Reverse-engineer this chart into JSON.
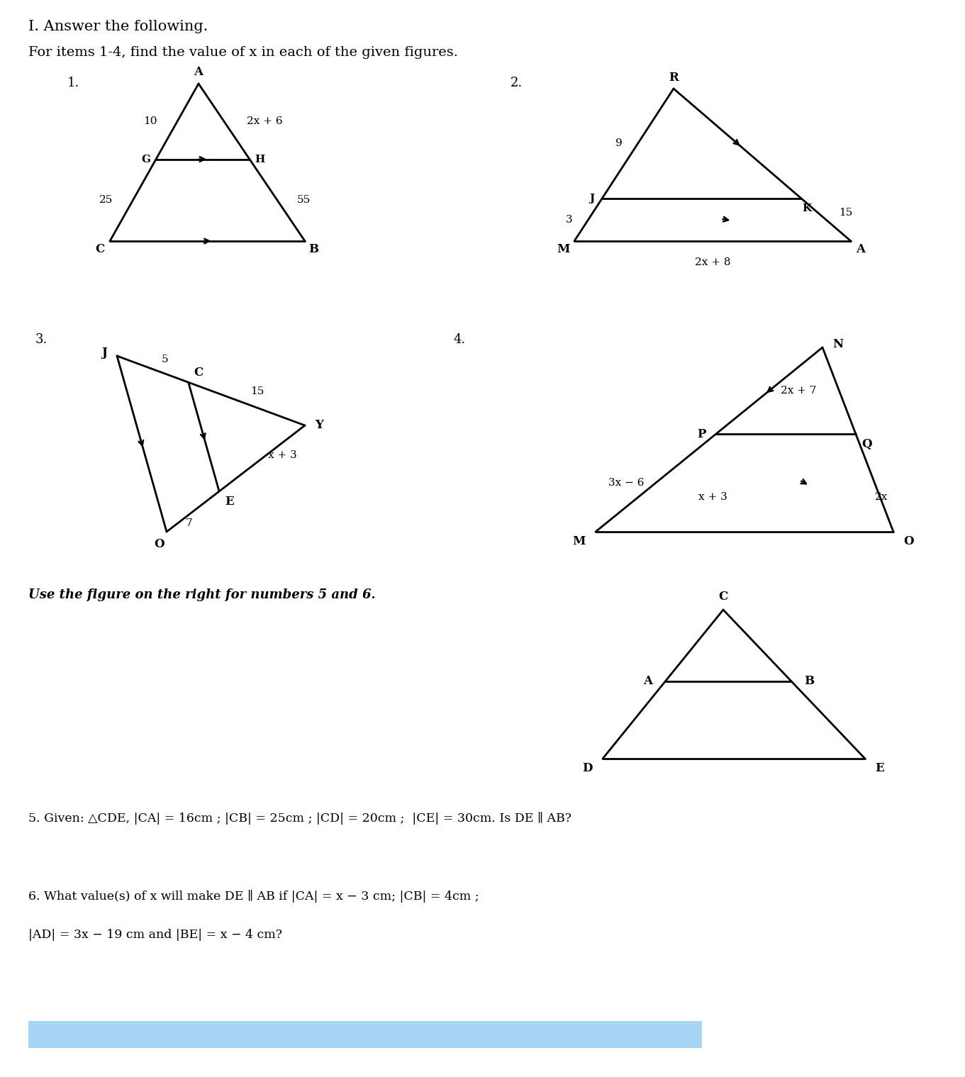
{
  "title_line1": "I. Answer the following.",
  "title_line2": "For items 1-4, find the value of x in each of the given figures.",
  "q5": "5. Given: △CDE, |CA| = 16cm ; |CB| = 25cm ; |CD| = 20cm ;  |CE| = 30cm. Is DE ∥ AB?",
  "q6_line1": "6. What value(s) of x will make DE ∥ AB if |CA| = x − 3 cm; |CB| = 4cm ;",
  "q6_line2": "|AD| = 3x − 19 cm and |BE| = x − 4 cm?",
  "use_fig_text": "Use the figure on the right for numbers 5 and 6."
}
